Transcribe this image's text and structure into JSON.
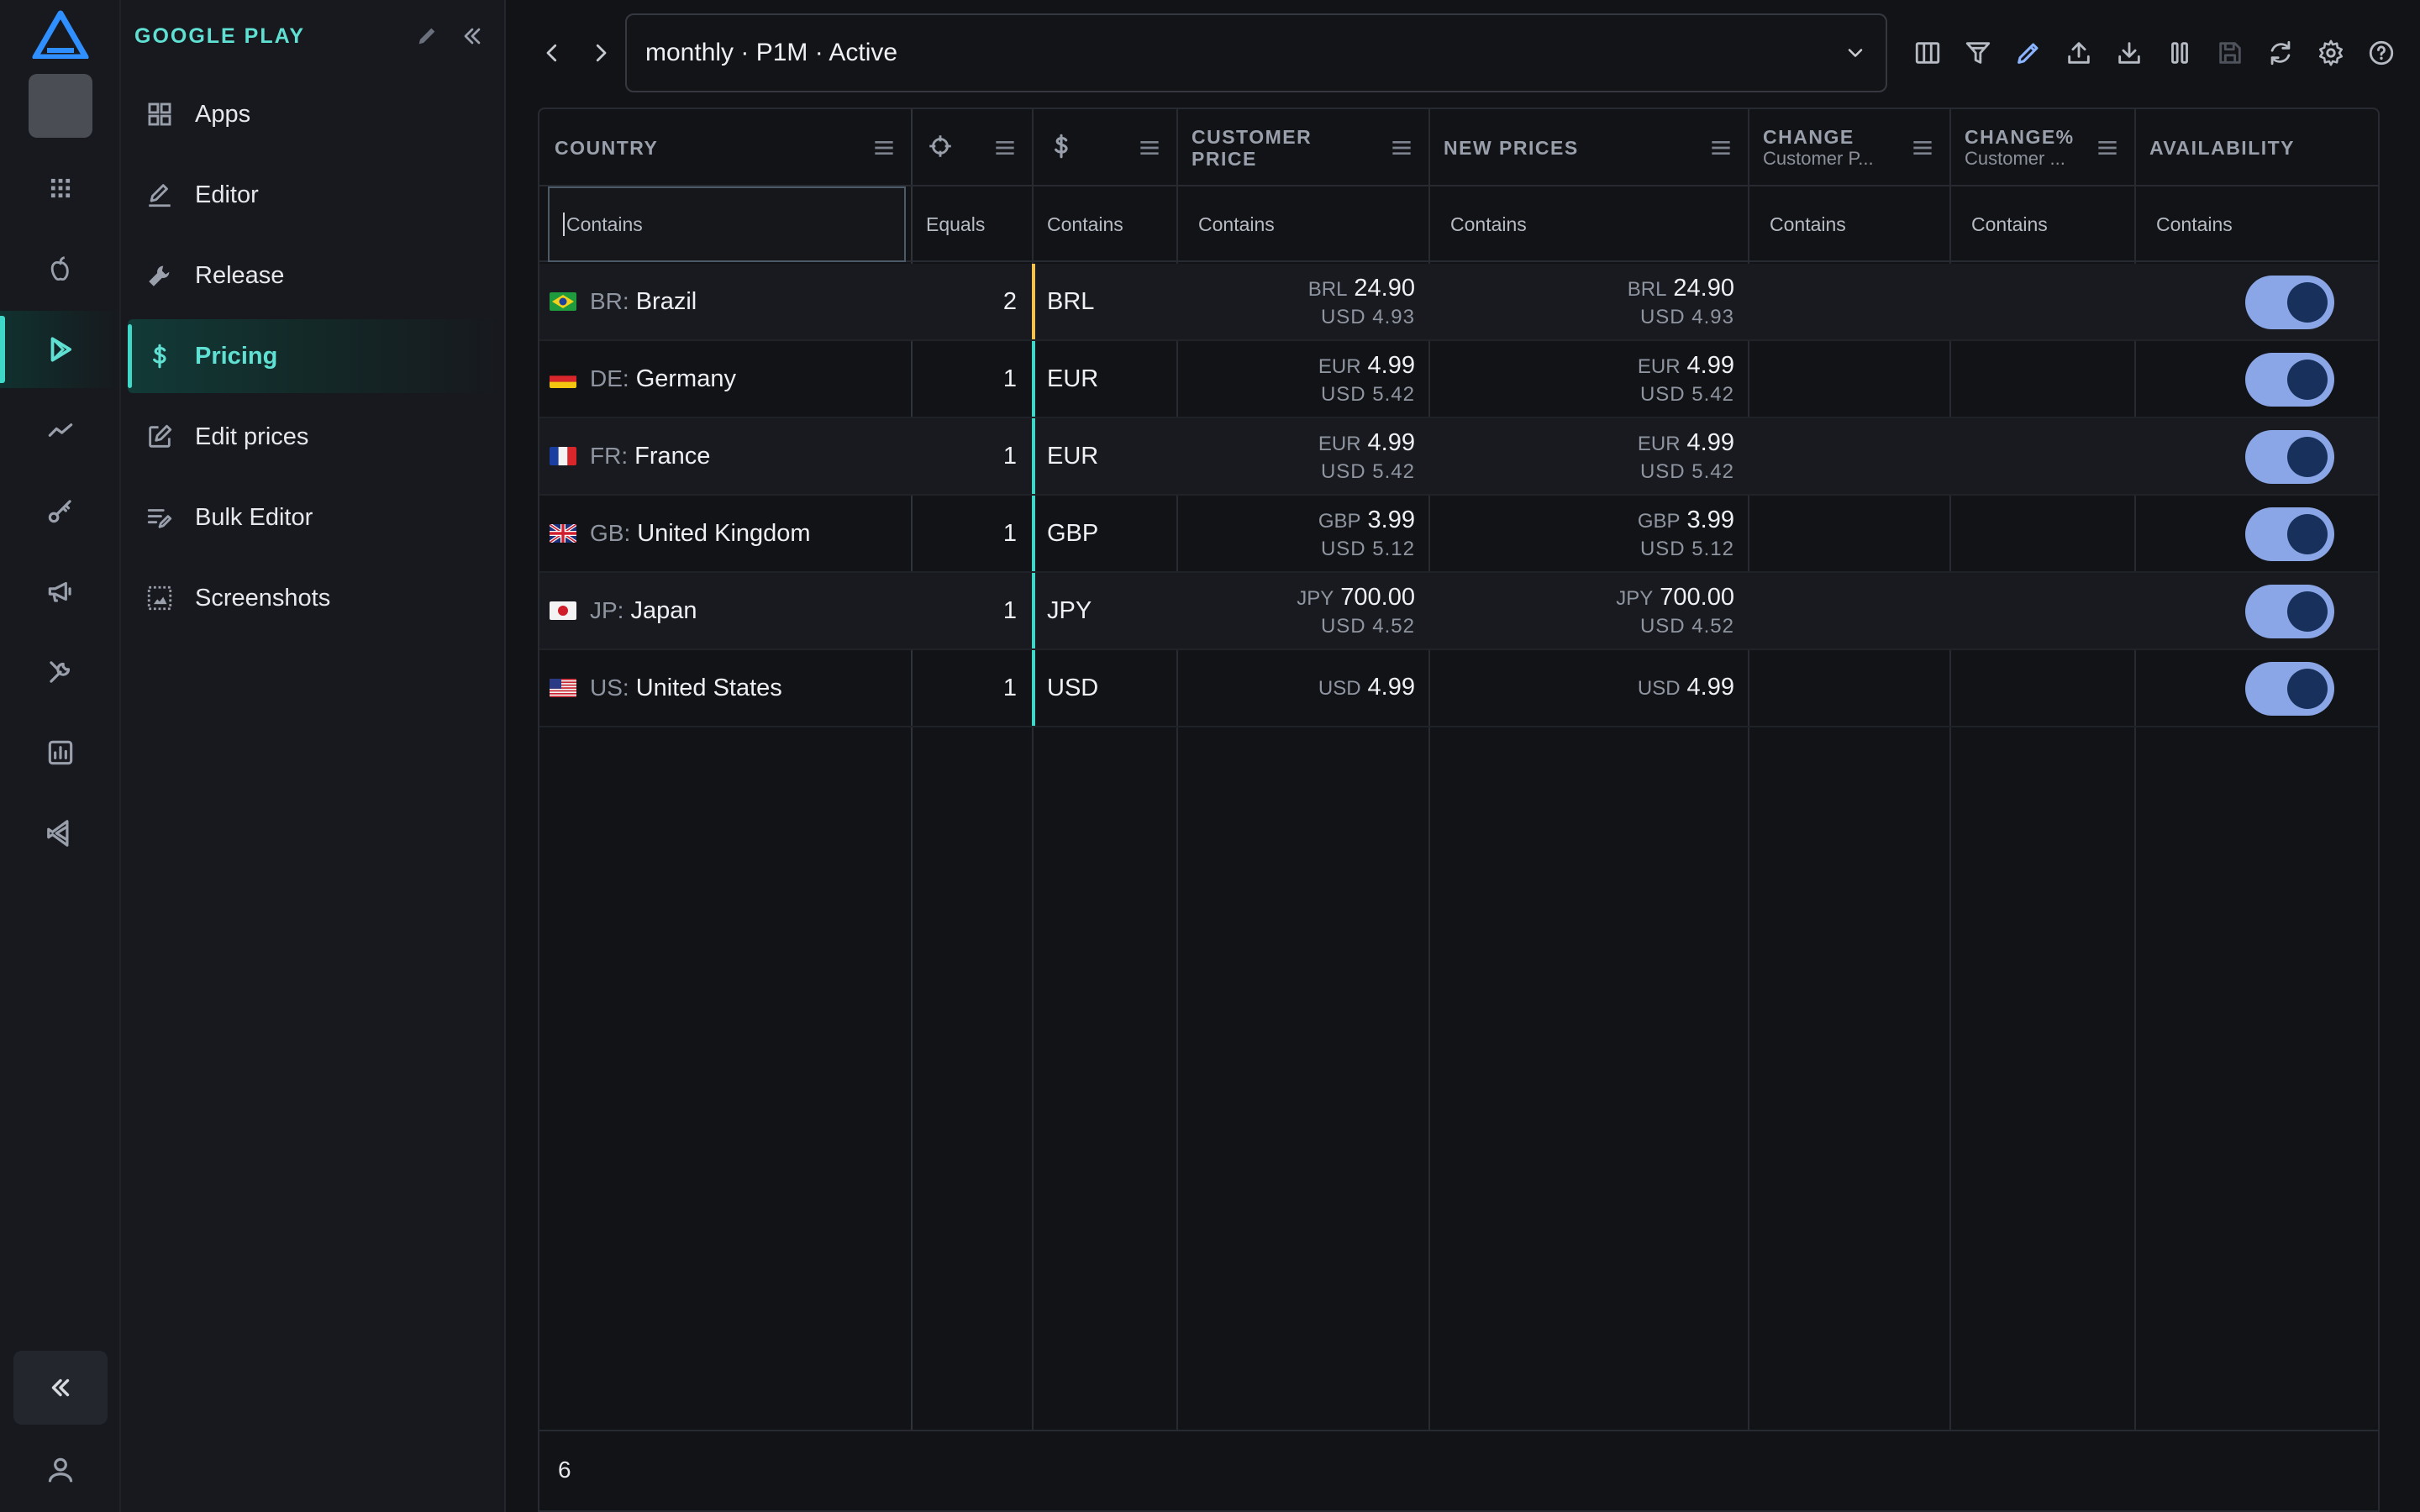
{
  "sidebar": {
    "title": "GOOGLE PLAY",
    "items": [
      {
        "label": "Apps",
        "icon": "grid-icon"
      },
      {
        "label": "Editor",
        "icon": "pen-icon"
      },
      {
        "label": "Release",
        "icon": "wrench-icon"
      },
      {
        "label": "Pricing",
        "icon": "dollar-icon",
        "active": true
      },
      {
        "label": "Edit prices",
        "icon": "edit-square-icon"
      },
      {
        "label": "Bulk Editor",
        "icon": "list-edit-icon"
      },
      {
        "label": "Screenshots",
        "icon": "screenshot-icon"
      }
    ]
  },
  "topbar": {
    "selector_value": "monthly · P1M · Active"
  },
  "grid": {
    "headers": {
      "country": "COUNTRY",
      "customer_price_l1": "CUSTOMER",
      "customer_price_l2": "PRICE",
      "new_prices": "NEW PRICES",
      "change": "CHANGE",
      "change_sub": "Customer P...",
      "change_pct": "CHANGE%",
      "change_pct_sub": "Customer ...",
      "availability": "AVAILABILITY"
    },
    "filters": {
      "country": "Contains",
      "tier": "Equals",
      "currency": "Contains",
      "customer_price": "Contains",
      "new_prices": "Contains",
      "change": "Contains",
      "change_pct": "Contains",
      "availability": "Contains"
    },
    "rows": [
      {
        "code": "BR:",
        "country": "Brazil",
        "tier": "2",
        "currency": "BRL",
        "cp_cur": "BRL",
        "cp_val": "24.90",
        "cp_usd": "USD 4.93",
        "np_cur": "BRL",
        "np_val": "24.90",
        "np_usd": "USD 4.93",
        "available": true
      },
      {
        "code": "DE:",
        "country": "Germany",
        "tier": "1",
        "currency": "EUR",
        "cp_cur": "EUR",
        "cp_val": "4.99",
        "cp_usd": "USD 5.42",
        "np_cur": "EUR",
        "np_val": "4.99",
        "np_usd": "USD 5.42",
        "available": true
      },
      {
        "code": "FR:",
        "country": "France",
        "tier": "1",
        "currency": "EUR",
        "cp_cur": "EUR",
        "cp_val": "4.99",
        "cp_usd": "USD 5.42",
        "np_cur": "EUR",
        "np_val": "4.99",
        "np_usd": "USD 5.42",
        "available": true
      },
      {
        "code": "GB:",
        "country": "United Kingdom",
        "tier": "1",
        "currency": "GBP",
        "cp_cur": "GBP",
        "cp_val": "3.99",
        "cp_usd": "USD 5.12",
        "np_cur": "GBP",
        "np_val": "3.99",
        "np_usd": "USD 5.12",
        "available": true
      },
      {
        "code": "JP:",
        "country": "Japan",
        "tier": "1",
        "currency": "JPY",
        "cp_cur": "JPY",
        "cp_val": "700.00",
        "cp_usd": "USD 4.52",
        "np_cur": "JPY",
        "np_val": "700.00",
        "np_usd": "USD 4.52",
        "available": true
      },
      {
        "code": "US:",
        "country": "United States",
        "tier": "1",
        "currency": "USD",
        "cp_cur": "USD",
        "cp_val": "4.99",
        "cp_usd": "",
        "np_cur": "USD",
        "np_val": "4.99",
        "np_usd": "",
        "available": true
      }
    ],
    "footer_count": "6"
  },
  "colors": {
    "accent": "#3fd8c8",
    "tier2_marker": "#f2c14e",
    "tier1_marker": "#3fd8c8",
    "toggle_track": "#8aa6e6",
    "toggle_knob": "#17305c"
  }
}
